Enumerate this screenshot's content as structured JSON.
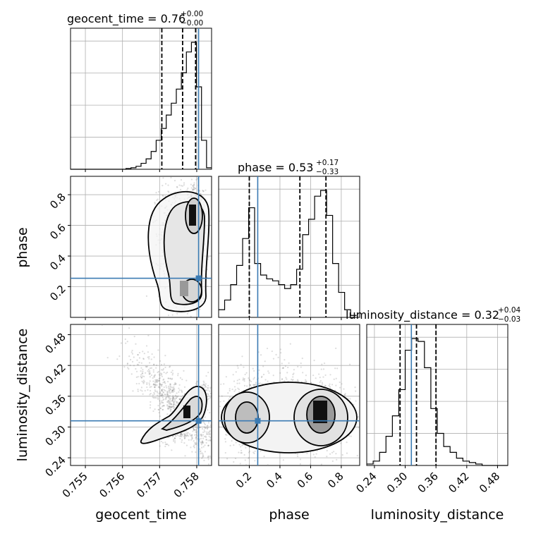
{
  "chart_data": {
    "type": "corner",
    "truth_color": "#3b7bb3",
    "parameters": [
      {
        "name": "geocent_time",
        "truth": 0.75805,
        "axis_label": "geocent_time",
        "title": {
          "base": "geocent_time = 0.76",
          "sup": "+0.00",
          "sub": "−0.00"
        },
        "ticks": [
          "0.755",
          "0.756",
          "0.757",
          "0.758"
        ],
        "quantiles": [
          0.75706,
          0.75762,
          0.75797
        ]
      },
      {
        "name": "phase",
        "truth": 0.255,
        "axis_label": "phase",
        "title": {
          "base": "phase = 0.53",
          "sup": "+0.17",
          "sub": "−0.33"
        },
        "ticks": [
          "0.2",
          "0.4",
          "0.6",
          "0.8"
        ],
        "quantiles": [
          0.2,
          0.53,
          0.7
        ]
      },
      {
        "name": "luminosity_distance",
        "truth": 0.312,
        "axis_label": "luminosity_distance",
        "title": {
          "base": "luminosity_distance = 0.32",
          "sup": "+0.04",
          "sub": "−0.03"
        },
        "ticks": [
          "0.24",
          "0.30",
          "0.36",
          "0.42",
          "0.48"
        ],
        "quantiles": [
          0.29,
          0.322,
          0.36
        ]
      }
    ],
    "y_labels": {
      "phase": "phase",
      "luminosity_distance": "luminosity_distance"
    },
    "histograms": {
      "geocent_time": {
        "x0": 0.7546,
        "x1": 0.7584,
        "values": [
          0,
          0,
          0,
          0,
          0,
          0,
          0,
          0,
          0,
          0,
          0,
          1,
          2,
          4,
          8,
          14,
          24,
          39,
          55,
          73,
          89,
          108,
          130,
          158,
          171,
          111,
          39,
          2
        ]
      },
      "phase": {
        "x0": 0.0,
        "x1": 0.9,
        "values": [
          4,
          9,
          17,
          27,
          41,
          57,
          28,
          22,
          20,
          19,
          17,
          15,
          17,
          25,
          43,
          51,
          63,
          66,
          53,
          28,
          13,
          4,
          1
        ]
      },
      "luminosity_distance": {
        "x0": 0.225,
        "x1": 0.5,
        "values": [
          1,
          3,
          9,
          20,
          34,
          52,
          79,
          87,
          85,
          67,
          39,
          22,
          13,
          9,
          5,
          3,
          2,
          1,
          0,
          0,
          0,
          0
        ]
      }
    }
  }
}
